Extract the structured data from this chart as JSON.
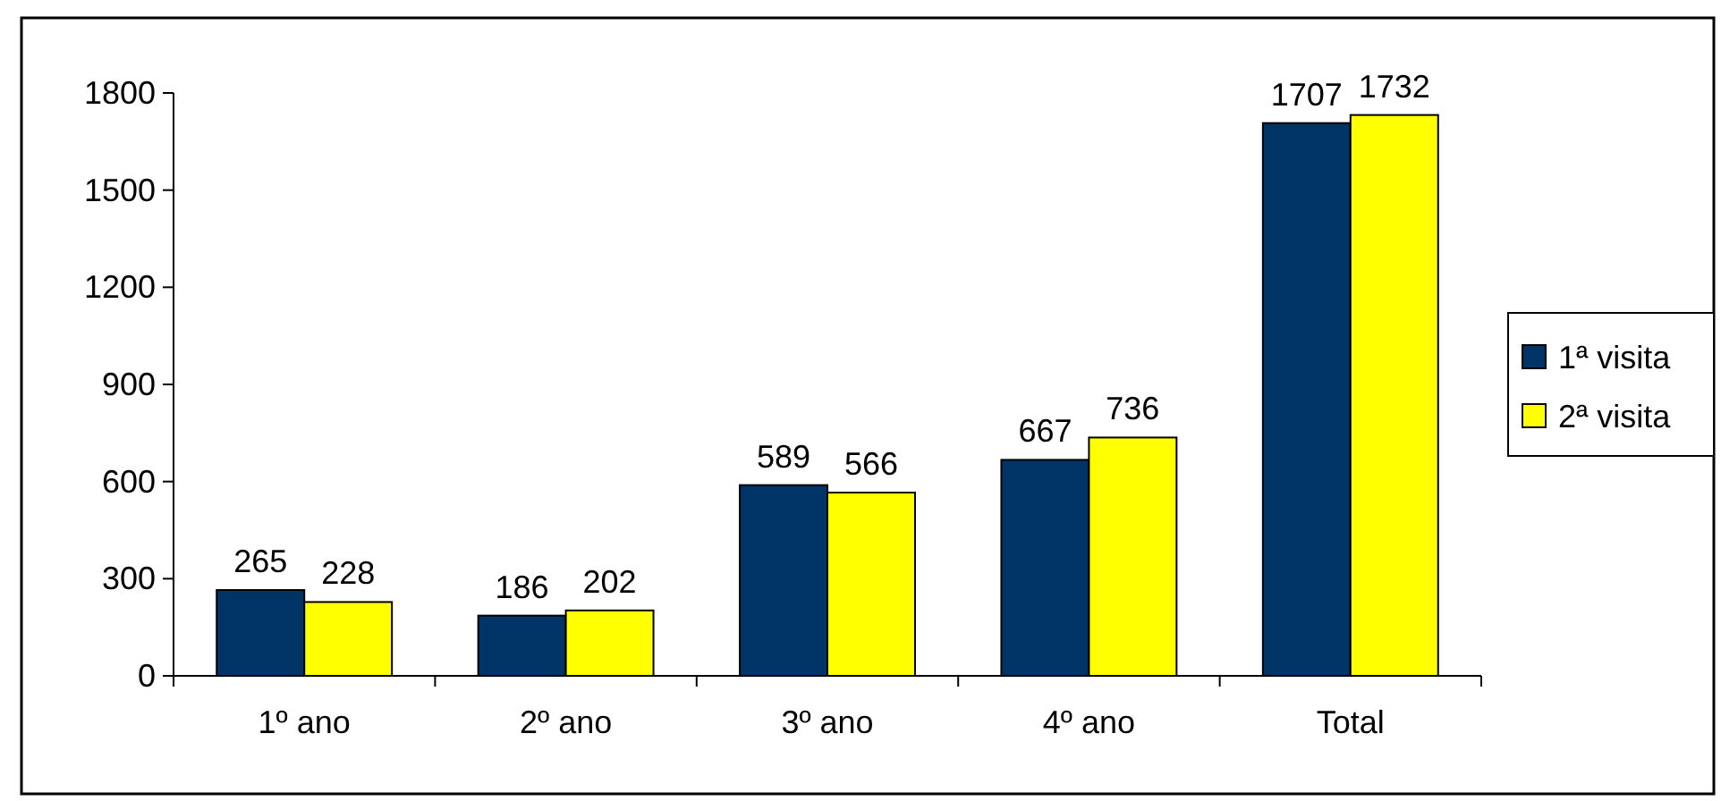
{
  "chart_data": {
    "type": "bar",
    "categories": [
      "1º ano",
      "2º ano",
      "3º ano",
      "4º ano",
      "Total"
    ],
    "series": [
      {
        "name": "1ª visita",
        "color": "#003366",
        "values": [
          265,
          186,
          589,
          667,
          1707
        ]
      },
      {
        "name": "2ª visita",
        "color": "#ffff00",
        "values": [
          228,
          202,
          566,
          736,
          1732
        ]
      }
    ],
    "ylim": [
      0,
      1800
    ],
    "yticks": [
      0,
      300,
      600,
      900,
      1200,
      1500,
      1800
    ],
    "grid": false,
    "legend": "right",
    "data_labels": true
  }
}
